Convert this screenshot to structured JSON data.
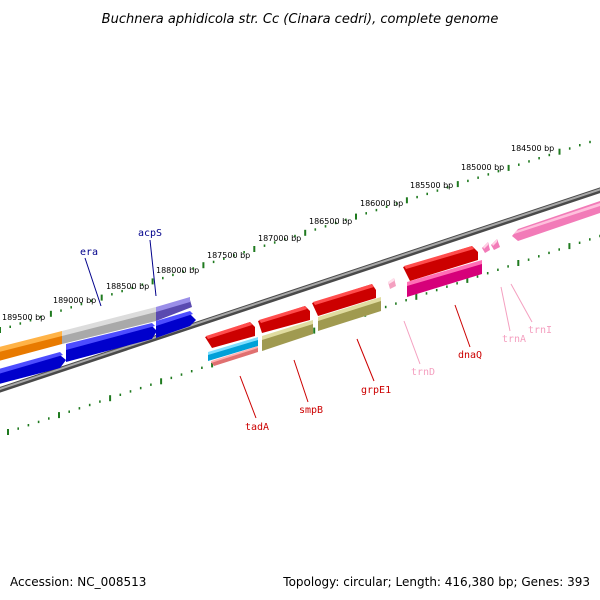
{
  "title": "Buchnera aphidicola str. Cc (Cinara cedri), complete genome",
  "footer": {
    "accession": "Accession: NC_008513",
    "summary": "Topology: circular; Length: 416,380 bp; Genes: 393"
  },
  "colors": {
    "backbone": "#7a7a7a",
    "ticks": "#1f7a1f",
    "forward_label": "#00008b",
    "reverse_label": "#cc0000",
    "trna_label": "#ee82b4"
  },
  "scale": {
    "tick_labels": [
      "189500 bp",
      "189000 bp",
      "188500 bp",
      "188000 bp",
      "187500 bp",
      "187000 bp",
      "186500 bp",
      "186000 bp",
      "185500 bp",
      "185000 bp",
      "184500 bp"
    ]
  },
  "genes": {
    "forward": [
      {
        "label": "",
        "color": "#ff8c00"
      },
      {
        "label": "",
        "color": "#b4b4b4"
      },
      {
        "label": "acpS",
        "color": "#6a5acd"
      },
      {
        "label": "",
        "color": "#0000ee"
      },
      {
        "label": "era",
        "color": "#0000ee"
      },
      {
        "label": "",
        "color": "#0000ee"
      },
      {
        "label": "",
        "color": "#ff69b4"
      }
    ],
    "reverse": [
      {
        "label": "",
        "color": "#ee0000"
      },
      {
        "label": "tadA",
        "color": "#00bfff"
      },
      {
        "label": "",
        "color": "#f08080"
      },
      {
        "label": "",
        "color": "#ee0000"
      },
      {
        "label": "smpB",
        "color": "#bdb76b"
      },
      {
        "label": "",
        "color": "#ee0000"
      },
      {
        "label": "grpE1",
        "color": "#bdb76b"
      },
      {
        "label": "trnD",
        "color": "#ffb6c1"
      },
      {
        "label": "",
        "color": "#ee0000"
      },
      {
        "label": "dnaQ",
        "color": "#ff1493"
      },
      {
        "label": "trnA",
        "color": "#ff69b4"
      },
      {
        "label": "trnI",
        "color": "#ff69b4"
      }
    ]
  }
}
